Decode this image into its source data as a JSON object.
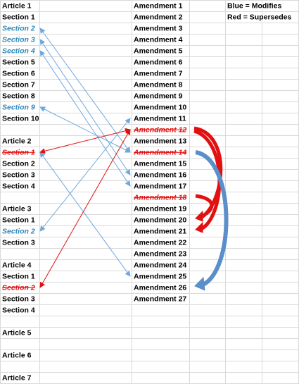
{
  "articles": [
    {
      "title": "Article 1",
      "sections": [
        {
          "label": "Section 1"
        },
        {
          "label": "Section 2",
          "status": "modified"
        },
        {
          "label": "Section 3",
          "status": "modified"
        },
        {
          "label": "Section 4",
          "status": "modified"
        },
        {
          "label": "Section 5"
        },
        {
          "label": "Section 6"
        },
        {
          "label": "Section 7"
        },
        {
          "label": "Section 8"
        },
        {
          "label": "Section 9",
          "status": "modified"
        },
        {
          "label": "Section 10"
        }
      ]
    },
    {
      "title": "Article 2",
      "sections": [
        {
          "label": "Section 1",
          "status": "superseded"
        },
        {
          "label": "Section 2"
        },
        {
          "label": "Section 3"
        },
        {
          "label": "Section 4"
        }
      ]
    },
    {
      "title": "Article 3",
      "sections": [
        {
          "label": "Section 1"
        },
        {
          "label": "Section 2",
          "status": "modified"
        },
        {
          "label": "Section 3"
        }
      ]
    },
    {
      "title": "Article 4",
      "sections": [
        {
          "label": "Section 1"
        },
        {
          "label": "Section 2",
          "status": "superseded"
        },
        {
          "label": "Section 3"
        },
        {
          "label": "Section 4"
        }
      ]
    },
    {
      "title": "Article 5",
      "sections": []
    },
    {
      "title": "Article 6",
      "sections": []
    },
    {
      "title": "Article 7",
      "sections": []
    }
  ],
  "amendments": [
    {
      "label": "Amendment 1"
    },
    {
      "label": "Amendment 2"
    },
    {
      "label": "Amendment 3"
    },
    {
      "label": "Amendment 4"
    },
    {
      "label": "Amendment 5"
    },
    {
      "label": "Amendment 6"
    },
    {
      "label": "Amendment 7"
    },
    {
      "label": "Amendment 8"
    },
    {
      "label": "Amendment 9"
    },
    {
      "label": "Amendment 10"
    },
    {
      "label": "Amendment 11"
    },
    {
      "label": "Amendment 12",
      "status": "superseded"
    },
    {
      "label": "Amendment 13"
    },
    {
      "label": "Amendment 14",
      "status": "superseded"
    },
    {
      "label": "Amendment 15"
    },
    {
      "label": "Amendment 16"
    },
    {
      "label": "Amendment 17"
    },
    {
      "label": "Amendment 18",
      "status": "superseded"
    },
    {
      "label": "Amendment 19"
    },
    {
      "label": "Amendment 20"
    },
    {
      "label": "Amendment 21"
    },
    {
      "label": "Amendment 22"
    },
    {
      "label": "Amendment 23"
    },
    {
      "label": "Amendment 24"
    },
    {
      "label": "Amendment 25"
    },
    {
      "label": "Amendment 26"
    },
    {
      "label": "Amendment 27"
    }
  ],
  "legend": [
    "Blue = Modifies",
    "Red = Supersedes"
  ]
}
